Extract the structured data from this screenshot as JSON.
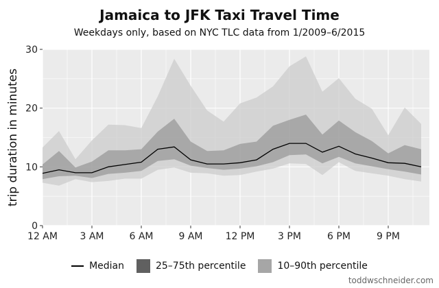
{
  "chart_data": {
    "type": "area",
    "title": "Jamaica to JFK Taxi Travel Time",
    "subtitle": "Weekdays only, based on NYC TLC data from 1/2009–6/2015",
    "xlabel": "",
    "ylabel": "trip duration in minutes",
    "xlim": [
      0,
      23.5
    ],
    "ylim": [
      0,
      30
    ],
    "x_ticks": [
      0,
      3,
      6,
      9,
      12,
      15,
      18,
      21
    ],
    "x_tick_labels": [
      "12 AM",
      "3 AM",
      "6 AM",
      "9 AM",
      "12 PM",
      "3 PM",
      "6 PM",
      "9 PM"
    ],
    "y_ticks": [
      0,
      10,
      20,
      30
    ],
    "y_tick_labels": [
      "0",
      "10",
      "20",
      "30"
    ],
    "grid": true,
    "legend_position": "bottom",
    "x": [
      0,
      1,
      2,
      3,
      4,
      5,
      6,
      7,
      8,
      9,
      10,
      11,
      12,
      13,
      14,
      15,
      16,
      17,
      18,
      19,
      20,
      21,
      22,
      23
    ],
    "series": [
      {
        "name": "10–90th percentile",
        "lower": [
          7.3,
          6.8,
          7.9,
          7.4,
          7.6,
          8.0,
          8.0,
          9.5,
          9.9,
          9.0,
          8.9,
          8.5,
          8.6,
          9.2,
          9.7,
          10.6,
          10.5,
          8.6,
          10.8,
          9.3,
          8.9,
          8.5,
          7.9,
          7.5
        ],
        "upper": [
          13.3,
          16.1,
          11.3,
          14.5,
          17.2,
          17.1,
          16.6,
          22.0,
          28.4,
          23.8,
          19.6,
          17.7,
          20.8,
          21.8,
          23.7,
          27.1,
          28.8,
          22.8,
          25.1,
          21.6,
          19.9,
          15.4,
          20.1,
          17.3
        ]
      },
      {
        "name": "25–75th percentile",
        "lower": [
          7.9,
          8.4,
          8.5,
          8.1,
          8.8,
          9.0,
          9.3,
          11.0,
          11.3,
          10.2,
          9.8,
          9.5,
          9.7,
          10.1,
          10.8,
          12.0,
          12.1,
          10.6,
          11.7,
          10.6,
          10.1,
          9.6,
          9.2,
          8.7
        ],
        "upper": [
          10.4,
          12.7,
          9.9,
          10.9,
          12.8,
          12.8,
          13.0,
          16.0,
          18.2,
          14.3,
          12.7,
          12.8,
          13.9,
          14.3,
          17.0,
          18.0,
          18.9,
          15.5,
          17.9,
          15.9,
          14.4,
          12.3,
          13.7,
          13.0
        ]
      },
      {
        "name": "Median",
        "values": [
          8.9,
          9.5,
          9.0,
          9.0,
          10.0,
          10.4,
          10.8,
          13.0,
          13.4,
          11.2,
          10.5,
          10.5,
          10.7,
          11.2,
          13.0,
          14.0,
          14.0,
          12.5,
          13.5,
          12.2,
          11.5,
          10.7,
          10.6,
          10.0
        ]
      }
    ],
    "colors": {
      "band_outer": "#cccccc",
      "band_inner": "#999999",
      "median": "#000000",
      "panel": "#ebebeb",
      "grid": "#ffffff",
      "legend_inner": "#606060",
      "legend_outer": "#a6a6a6"
    }
  },
  "legend": {
    "median": "Median",
    "inner": "25–75th percentile",
    "outer": "10–90th percentile"
  },
  "credit": "toddwschneider.com"
}
